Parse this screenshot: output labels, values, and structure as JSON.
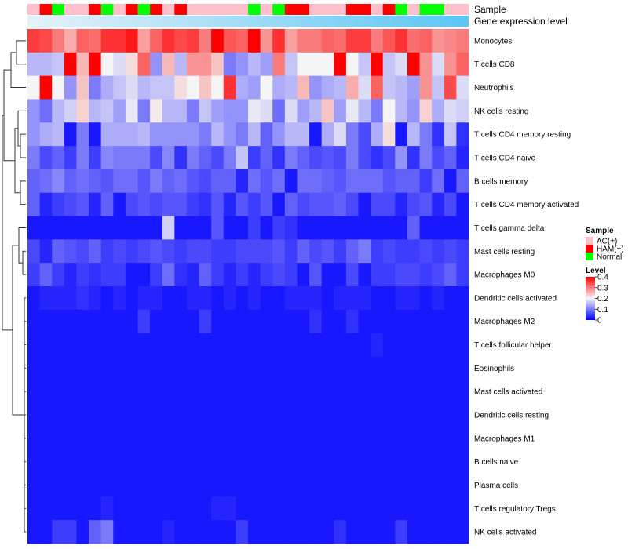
{
  "chart_data": {
    "type": "heatmap",
    "annotation_labels": {
      "sample": "Sample",
      "gene": "Gene expression level"
    },
    "sample_groups": [
      "A",
      "H",
      "N",
      "A",
      "A",
      "H",
      "N",
      "A",
      "H",
      "N",
      "H",
      "A",
      "H",
      "A",
      "A",
      "A",
      "A",
      "A",
      "N",
      "A",
      "N",
      "H",
      "H",
      "A",
      "A",
      "A",
      "H",
      "H",
      "A",
      "H",
      "N",
      "A",
      "N",
      "N",
      "A",
      "A"
    ],
    "rows": [
      "Monocytes",
      "T cells CD8",
      "Neutrophils",
      "NK cells resting",
      "T cells CD4 memory resting",
      "T cells CD4 naive",
      "B cells memory",
      "T cells CD4 memory activated",
      "T cells gamma delta",
      "Mast cells resting",
      "Macrophages M0",
      "Dendritic cells activated",
      "Macrophages M2",
      "T cells follicular helper",
      "Eosinophils",
      "Mast cells activated",
      "Dendritic cells resting",
      "Macrophages M1",
      "B cells naive",
      "Plasma cells",
      "T cells regulatory  Tregs",
      "NK cells activated"
    ],
    "values": [
      [
        0.35,
        0.34,
        0.3,
        0.26,
        0.32,
        0.31,
        0.36,
        0.36,
        0.38,
        0.27,
        0.32,
        0.36,
        0.34,
        0.35,
        0.3,
        0.4,
        0.33,
        0.32,
        0.4,
        0.28,
        0.36,
        0.27,
        0.3,
        0.3,
        0.32,
        0.31,
        0.35,
        0.35,
        0.3,
        0.33,
        0.36,
        0.31,
        0.32,
        0.28,
        0.29,
        0.3
      ],
      [
        0.15,
        0.15,
        0.16,
        0.4,
        0.25,
        0.4,
        0.2,
        0.18,
        0.22,
        0.32,
        0.12,
        0.25,
        0.15,
        0.28,
        0.28,
        0.24,
        0.1,
        0.12,
        0.15,
        0.13,
        0.3,
        0.16,
        0.2,
        0.2,
        0.2,
        0.4,
        0.2,
        0.16,
        0.4,
        0.16,
        0.18,
        0.4,
        0.28,
        0.18,
        0.28,
        0.32
      ],
      [
        0.2,
        0.4,
        0.2,
        0.12,
        0.24,
        0.1,
        0.14,
        0.16,
        0.18,
        0.15,
        0.16,
        0.16,
        0.22,
        0.2,
        0.24,
        0.2,
        0.36,
        0.14,
        0.13,
        0.2,
        0.14,
        0.15,
        0.25,
        0.12,
        0.14,
        0.15,
        0.26,
        0.18,
        0.32,
        0.16,
        0.15,
        0.13,
        0.28,
        0.16,
        0.34,
        0.18
      ],
      [
        0.12,
        0.09,
        0.15,
        0.17,
        0.23,
        0.15,
        0.16,
        0.13,
        0.19,
        0.1,
        0.21,
        0.15,
        0.15,
        0.1,
        0.16,
        0.13,
        0.12,
        0.12,
        0.19,
        0.18,
        0.09,
        0.18,
        0.13,
        0.15,
        0.24,
        0.13,
        0.19,
        0.15,
        0.1,
        0.2,
        0.15,
        0.12,
        0.23,
        0.14,
        0.18,
        0.17
      ],
      [
        0.12,
        0.14,
        0.15,
        0.02,
        0.1,
        0.02,
        0.14,
        0.14,
        0.14,
        0.15,
        0.12,
        0.12,
        0.12,
        0.12,
        0.1,
        0.15,
        0.12,
        0.1,
        0.15,
        0.08,
        0.12,
        0.15,
        0.15,
        0.02,
        0.14,
        0.18,
        0.1,
        0.06,
        0.14,
        0.22,
        0.02,
        0.15,
        0.1,
        0.04,
        0.16,
        0.04
      ],
      [
        0.1,
        0.06,
        0.08,
        0.05,
        0.1,
        0.05,
        0.11,
        0.1,
        0.1,
        0.1,
        0.06,
        0.11,
        0.04,
        0.1,
        0.08,
        0.06,
        0.1,
        0.16,
        0.05,
        0.08,
        0.04,
        0.1,
        0.08,
        0.06,
        0.07,
        0.06,
        0.1,
        0.06,
        0.04,
        0.06,
        0.12,
        0.04,
        0.1,
        0.06,
        0.08,
        0.03
      ],
      [
        0.08,
        0.09,
        0.11,
        0.08,
        0.09,
        0.08,
        0.07,
        0.09,
        0.09,
        0.07,
        0.1,
        0.08,
        0.09,
        0.07,
        0.06,
        0.08,
        0.08,
        0.03,
        0.09,
        0.07,
        0.09,
        0.02,
        0.09,
        0.09,
        0.08,
        0.07,
        0.09,
        0.09,
        0.09,
        0.07,
        0.08,
        0.08,
        0.05,
        0.09,
        0.02,
        0.08
      ],
      [
        0.08,
        0.03,
        0.05,
        0.06,
        0.07,
        0.03,
        0.08,
        0.02,
        0.06,
        0.07,
        0.06,
        0.07,
        0.07,
        0.05,
        0.04,
        0.07,
        0.03,
        0.07,
        0.05,
        0.07,
        0.02,
        0.08,
        0.06,
        0.07,
        0.07,
        0.08,
        0.06,
        0.02,
        0.06,
        0.06,
        0.03,
        0.06,
        0.07,
        0.03,
        0.06,
        0.02
      ],
      [
        0.02,
        0.02,
        0.02,
        0.02,
        0.02,
        0.02,
        0.02,
        0.02,
        0.02,
        0.02,
        0.02,
        0.17,
        0.02,
        0.02,
        0.02,
        0.07,
        0.02,
        0.02,
        0.05,
        0.02,
        0.05,
        0.04,
        0.02,
        0.02,
        0.02,
        0.02,
        0.02,
        0.02,
        0.02,
        0.02,
        0.02,
        0.08,
        0.02,
        0.02,
        0.02,
        0.02
      ],
      [
        0.06,
        0.03,
        0.08,
        0.07,
        0.06,
        0.08,
        0.05,
        0.06,
        0.05,
        0.06,
        0.07,
        0.06,
        0.05,
        0.06,
        0.06,
        0.05,
        0.05,
        0.06,
        0.06,
        0.06,
        0.07,
        0.05,
        0.08,
        0.06,
        0.07,
        0.05,
        0.08,
        0.1,
        0.05,
        0.06,
        0.05,
        0.05,
        0.06,
        0.05,
        0.06,
        0.05
      ],
      [
        0.05,
        0.08,
        0.05,
        0.03,
        0.05,
        0.04,
        0.05,
        0.05,
        0.02,
        0.02,
        0.05,
        0.09,
        0.04,
        0.03,
        0.08,
        0.05,
        0.03,
        0.05,
        0.03,
        0.05,
        0.06,
        0.05,
        0.02,
        0.07,
        0.02,
        0.02,
        0.06,
        0.02,
        0.05,
        0.05,
        0.06,
        0.06,
        0.05,
        0.06,
        0.08,
        0.05
      ],
      [
        0.02,
        0.03,
        0.03,
        0.03,
        0.04,
        0.03,
        0.02,
        0.03,
        0.02,
        0.03,
        0.03,
        0.02,
        0.02,
        0.03,
        0.03,
        0.02,
        0.03,
        0.02,
        0.03,
        0.02,
        0.02,
        0.03,
        0.03,
        0.03,
        0.02,
        0.03,
        0.03,
        0.03,
        0.02,
        0.02,
        0.03,
        0.03,
        0.02,
        0.03,
        0.02,
        0.02
      ],
      [
        0.02,
        0.02,
        0.02,
        0.02,
        0.02,
        0.02,
        0.02,
        0.02,
        0.02,
        0.05,
        0.02,
        0.02,
        0.02,
        0.02,
        0.05,
        0.02,
        0.02,
        0.02,
        0.02,
        0.02,
        0.02,
        0.02,
        0.02,
        0.04,
        0.02,
        0.02,
        0.04,
        0.02,
        0.02,
        0.02,
        0.02,
        0.02,
        0.02,
        0.02,
        0.02,
        0.02
      ],
      [
        0.02,
        0.02,
        0.02,
        0.02,
        0.02,
        0.02,
        0.02,
        0.02,
        0.02,
        0.02,
        0.02,
        0.02,
        0.02,
        0.02,
        0.02,
        0.02,
        0.02,
        0.02,
        0.02,
        0.02,
        0.02,
        0.02,
        0.02,
        0.02,
        0.02,
        0.02,
        0.02,
        0.02,
        0.03,
        0.02,
        0.02,
        0.02,
        0.02,
        0.02,
        0.02,
        0.02
      ],
      [
        0.02,
        0.02,
        0.02,
        0.02,
        0.02,
        0.02,
        0.02,
        0.02,
        0.02,
        0.02,
        0.02,
        0.02,
        0.02,
        0.02,
        0.02,
        0.02,
        0.02,
        0.02,
        0.02,
        0.02,
        0.02,
        0.02,
        0.02,
        0.02,
        0.02,
        0.02,
        0.02,
        0.02,
        0.02,
        0.02,
        0.02,
        0.02,
        0.02,
        0.02,
        0.02,
        0.02
      ],
      [
        0.02,
        0.02,
        0.02,
        0.02,
        0.02,
        0.02,
        0.02,
        0.02,
        0.02,
        0.02,
        0.02,
        0.02,
        0.02,
        0.02,
        0.02,
        0.02,
        0.02,
        0.02,
        0.02,
        0.02,
        0.02,
        0.02,
        0.02,
        0.02,
        0.02,
        0.02,
        0.02,
        0.02,
        0.02,
        0.02,
        0.02,
        0.02,
        0.02,
        0.02,
        0.02,
        0.02
      ],
      [
        0.02,
        0.02,
        0.02,
        0.02,
        0.02,
        0.02,
        0.02,
        0.02,
        0.02,
        0.02,
        0.02,
        0.02,
        0.02,
        0.02,
        0.02,
        0.02,
        0.02,
        0.02,
        0.02,
        0.02,
        0.02,
        0.02,
        0.02,
        0.02,
        0.02,
        0.02,
        0.02,
        0.02,
        0.02,
        0.02,
        0.02,
        0.02,
        0.02,
        0.02,
        0.02,
        0.02
      ],
      [
        0.02,
        0.02,
        0.02,
        0.02,
        0.02,
        0.02,
        0.02,
        0.02,
        0.02,
        0.02,
        0.02,
        0.02,
        0.02,
        0.02,
        0.02,
        0.02,
        0.02,
        0.02,
        0.02,
        0.02,
        0.02,
        0.02,
        0.02,
        0.02,
        0.02,
        0.02,
        0.02,
        0.02,
        0.02,
        0.02,
        0.02,
        0.02,
        0.02,
        0.02,
        0.02,
        0.02
      ],
      [
        0.02,
        0.02,
        0.02,
        0.02,
        0.02,
        0.02,
        0.02,
        0.02,
        0.02,
        0.02,
        0.02,
        0.02,
        0.02,
        0.02,
        0.02,
        0.02,
        0.02,
        0.02,
        0.02,
        0.02,
        0.02,
        0.02,
        0.02,
        0.02,
        0.02,
        0.02,
        0.02,
        0.02,
        0.02,
        0.02,
        0.02,
        0.02,
        0.02,
        0.02,
        0.02,
        0.02
      ],
      [
        0.02,
        0.02,
        0.02,
        0.02,
        0.02,
        0.02,
        0.02,
        0.02,
        0.02,
        0.02,
        0.02,
        0.02,
        0.02,
        0.02,
        0.02,
        0.02,
        0.02,
        0.02,
        0.02,
        0.02,
        0.02,
        0.02,
        0.02,
        0.02,
        0.02,
        0.02,
        0.02,
        0.02,
        0.02,
        0.02,
        0.02,
        0.02,
        0.02,
        0.02,
        0.02,
        0.02
      ],
      [
        0.02,
        0.02,
        0.02,
        0.02,
        0.02,
        0.02,
        0.03,
        0.02,
        0.02,
        0.02,
        0.02,
        0.02,
        0.02,
        0.02,
        0.02,
        0.03,
        0.03,
        0.02,
        0.02,
        0.02,
        0.02,
        0.02,
        0.02,
        0.02,
        0.02,
        0.02,
        0.02,
        0.02,
        0.02,
        0.02,
        0.02,
        0.02,
        0.02,
        0.02,
        0.02,
        0.02
      ],
      [
        0.02,
        0.02,
        0.05,
        0.05,
        0.02,
        0.08,
        0.1,
        0.02,
        0.02,
        0.02,
        0.02,
        0.03,
        0.02,
        0.02,
        0.02,
        0.02,
        0.02,
        0.05,
        0.02,
        0.02,
        0.02,
        0.02,
        0.02,
        0.02,
        0.02,
        0.04,
        0.02,
        0.02,
        0.02,
        0.02,
        0.05,
        0.02,
        0.02,
        0.02,
        0.02,
        0.02
      ]
    ],
    "colorscale": {
      "min": 0,
      "mid": 0.2,
      "max": 0.4,
      "low_color": "#0000FF",
      "mid_color": "#F5F5F5",
      "high_color": "#FF0000"
    },
    "legend": {
      "sample_title": "Sample",
      "sample_entries": [
        {
          "key": "A",
          "label": "AC(+)",
          "color": "#FFC0CB"
        },
        {
          "key": "H",
          "label": "HAM(+)",
          "color": "#FF0000"
        },
        {
          "key": "N",
          "label": "Normal",
          "color": "#00FF00"
        }
      ],
      "level_title": "Level",
      "level_ticks": [
        0.4,
        0.3,
        0.2,
        0.1,
        0
      ]
    },
    "gene_expression_gradient": {
      "from": "#E6F2FA",
      "to": "#5BC6F5"
    }
  }
}
